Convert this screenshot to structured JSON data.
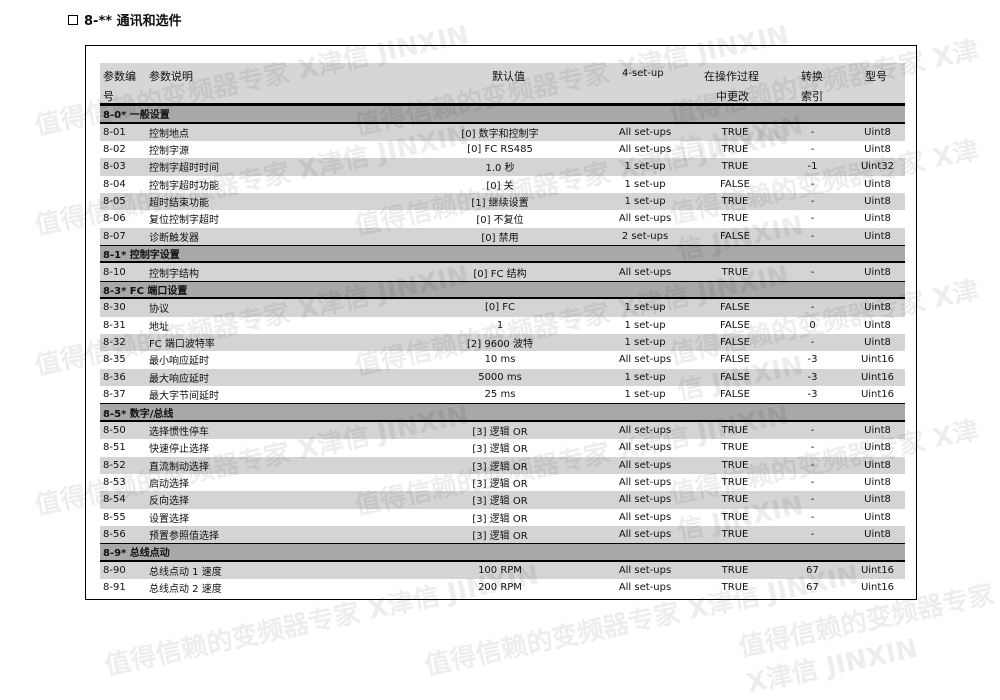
{
  "title": "8-** 通讯和选件",
  "headers": {
    "no": "参数编",
    "no2": "号",
    "desc": "参数说明",
    "default": "默认值",
    "setup": "4-set-up",
    "change": "在操作过程",
    "change2": "中更改",
    "conv": "转换",
    "conv2": "索引",
    "type": "型号"
  },
  "watermark": "值得信赖的变频器专家 X津信 JINXIN",
  "groups": [
    {
      "title": "8-0* 一般设置",
      "rows": [
        [
          "8-01",
          "控制地点",
          "[0] 数字和控制字",
          "All set-ups",
          "TRUE",
          "-",
          "Uint8"
        ],
        [
          "8-02",
          "控制字源",
          "[0] FC RS485",
          "All set-ups",
          "TRUE",
          "-",
          "Uint8"
        ],
        [
          "8-03",
          "控制字超时时间",
          "1.0 秒",
          "1 set-up",
          "TRUE",
          "-1",
          "Uint32"
        ],
        [
          "8-04",
          "控制字超时功能",
          "[0] 关",
          "1 set-up",
          "FALSE",
          "-",
          "Uint8"
        ],
        [
          "8-05",
          "超时结束功能",
          "[1] 继续设置",
          "1 set-up",
          "TRUE",
          "-",
          "Uint8"
        ],
        [
          "8-06",
          "复位控制字超时",
          "[0] 不复位",
          "All set-ups",
          "TRUE",
          "-",
          "Uint8"
        ],
        [
          "8-07",
          "诊断触发器",
          "[0] 禁用",
          "2 set-ups",
          "FALSE",
          "-",
          "Uint8"
        ]
      ]
    },
    {
      "title": "8-1* 控制字设置",
      "rows": [
        [
          "8-10",
          "控制字结构",
          "[0] FC 结构",
          "All set-ups",
          "TRUE",
          "-",
          "Uint8"
        ]
      ]
    },
    {
      "title": "8-3* FC 端口设置",
      "rows": [
        [
          "8-30",
          "协议",
          "[0] FC",
          "1 set-up",
          "FALSE",
          "-",
          "Uint8"
        ],
        [
          "8-31",
          "地址",
          "1",
          "1 set-up",
          "FALSE",
          "0",
          "Uint8"
        ],
        [
          "8-32",
          "FC 端口波特率",
          "[2] 9600 波特",
          "1 set-up",
          "FALSE",
          "-",
          "Uint8"
        ],
        [
          "8-35",
          "最小响应延时",
          "10 ms",
          "All set-ups",
          "FALSE",
          "-3",
          "Uint16"
        ],
        [
          "8-36",
          "最大响应延时",
          "5000 ms",
          "1 set-up",
          "FALSE",
          "-3",
          "Uint16"
        ],
        [
          "8-37",
          "最大字节间延时",
          "25 ms",
          "1 set-up",
          "FALSE",
          "-3",
          "Uint16"
        ]
      ]
    },
    {
      "title": "8-5* 数字/总线",
      "rows": [
        [
          "8-50",
          "选择惯性停车",
          "[3] 逻辑 OR",
          "All set-ups",
          "TRUE",
          "-",
          "Uint8"
        ],
        [
          "8-51",
          "快速停止选择",
          "[3] 逻辑 OR",
          "All set-ups",
          "TRUE",
          "-",
          "Uint8"
        ],
        [
          "8-52",
          "直流制动选择",
          "[3] 逻辑 OR",
          "All set-ups",
          "TRUE",
          "-",
          "Uint8"
        ],
        [
          "8-53",
          "启动选择",
          "[3] 逻辑 OR",
          "All set-ups",
          "TRUE",
          "-",
          "Uint8"
        ],
        [
          "8-54",
          "反向选择",
          "[3] 逻辑 OR",
          "All set-ups",
          "TRUE",
          "-",
          "Uint8"
        ],
        [
          "8-55",
          "设置选择",
          "[3] 逻辑 OR",
          "All set-ups",
          "TRUE",
          "-",
          "Uint8"
        ],
        [
          "8-56",
          "预置参照值选择",
          "[3] 逻辑 OR",
          "All set-ups",
          "TRUE",
          "-",
          "Uint8"
        ]
      ]
    },
    {
      "title": "8-9* 总线点动",
      "rows": [
        [
          "8-90",
          "总线点动 1 速度",
          "100 RPM",
          "All set-ups",
          "TRUE",
          "67",
          "Uint16"
        ],
        [
          "8-91",
          "总线点动 2 速度",
          "200 RPM",
          "All set-ups",
          "TRUE",
          "67",
          "Uint16"
        ]
      ]
    }
  ]
}
